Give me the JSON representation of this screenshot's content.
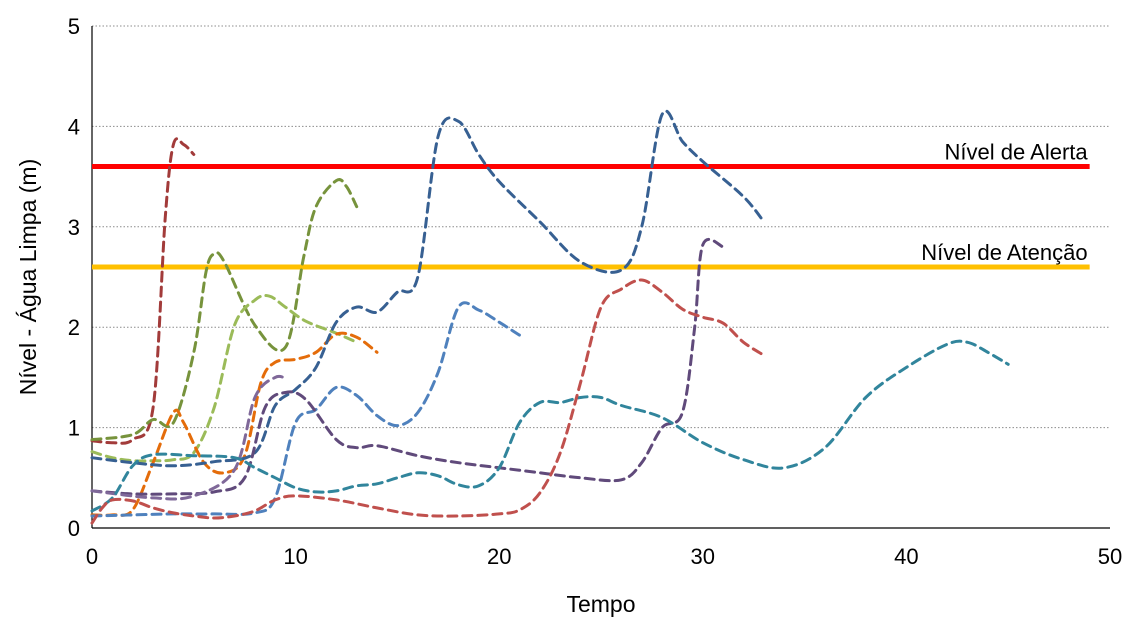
{
  "chart_data": {
    "type": "line",
    "title": "",
    "xlabel": "Tempo",
    "ylabel": "Nível - Água Limpa (m)",
    "xlim": [
      0,
      50
    ],
    "ylim": [
      0,
      5
    ],
    "x_ticks": [
      0,
      10,
      20,
      30,
      40,
      50
    ],
    "y_ticks": [
      0,
      1,
      2,
      3,
      4,
      5
    ],
    "grid": "horizontal dotted",
    "legend": "none",
    "reference_lines": [
      {
        "label": "Nível de Alerta",
        "value": 3.6,
        "color": "#ff0000"
      },
      {
        "label": "Nível de Atenção",
        "value": 2.6,
        "color": "#ffc000"
      }
    ],
    "series": [
      {
        "color": "#a23b3a",
        "points": [
          [
            0,
            0.87
          ],
          [
            1,
            0.85
          ],
          [
            2,
            0.88
          ],
          [
            3,
            1.2
          ],
          [
            3.6,
            3.1
          ],
          [
            4,
            3.82
          ],
          [
            4.5,
            3.82
          ],
          [
            5,
            3.72
          ]
        ]
      },
      {
        "color": "#77933c",
        "points": [
          [
            0,
            0.88
          ],
          [
            2,
            0.93
          ],
          [
            3,
            1.08
          ],
          [
            4,
            1.05
          ],
          [
            5,
            1.75
          ],
          [
            5.6,
            2.55
          ],
          [
            6,
            2.73
          ],
          [
            6.5,
            2.65
          ],
          [
            8,
            2.02
          ],
          [
            9.5,
            1.8
          ],
          [
            10.4,
            2.7
          ],
          [
            11,
            3.2
          ],
          [
            12,
            3.46
          ],
          [
            12.5,
            3.4
          ],
          [
            13,
            3.2
          ]
        ]
      },
      {
        "color": "#9bbb59",
        "points": [
          [
            0,
            0.76
          ],
          [
            1,
            0.7
          ],
          [
            2,
            0.67
          ],
          [
            3,
            0.67
          ],
          [
            4,
            0.68
          ],
          [
            5,
            0.75
          ],
          [
            6,
            1.2
          ],
          [
            7,
            2.02
          ],
          [
            8,
            2.27
          ],
          [
            8.7,
            2.31
          ],
          [
            9.5,
            2.2
          ],
          [
            10.5,
            2.06
          ],
          [
            12,
            1.94
          ],
          [
            13,
            1.85
          ]
        ]
      },
      {
        "color": "#e46c0a",
        "points": [
          [
            0,
            0.13
          ],
          [
            1,
            0.13
          ],
          [
            2,
            0.18
          ],
          [
            3,
            0.65
          ],
          [
            4,
            1.15
          ],
          [
            4.5,
            1.05
          ],
          [
            5.5,
            0.65
          ],
          [
            6.5,
            0.55
          ],
          [
            7.5,
            0.72
          ],
          [
            8.3,
            1.45
          ],
          [
            9,
            1.65
          ],
          [
            10,
            1.68
          ],
          [
            11,
            1.75
          ],
          [
            12,
            1.93
          ],
          [
            13,
            1.9
          ],
          [
            14,
            1.75
          ]
        ]
      },
      {
        "color": "#376092",
        "points": [
          [
            0,
            0.7
          ],
          [
            2,
            0.65
          ],
          [
            4,
            0.62
          ],
          [
            6,
            0.66
          ],
          [
            8,
            0.75
          ],
          [
            9,
            1.22
          ],
          [
            10,
            1.38
          ],
          [
            11,
            1.6
          ],
          [
            12,
            2.05
          ],
          [
            13,
            2.2
          ],
          [
            14,
            2.15
          ],
          [
            15,
            2.35
          ],
          [
            16,
            2.5
          ],
          [
            17,
            3.9
          ],
          [
            18,
            4.05
          ],
          [
            19,
            3.72
          ],
          [
            20,
            3.45
          ],
          [
            22,
            3.05
          ],
          [
            24,
            2.65
          ],
          [
            26,
            2.57
          ],
          [
            27,
            3.0
          ],
          [
            28,
            4.12
          ],
          [
            29,
            3.85
          ],
          [
            30,
            3.65
          ],
          [
            32,
            3.3
          ],
          [
            33,
            3.05
          ]
        ]
      },
      {
        "color": "#4f81bd",
        "points": [
          [
            0,
            0.12
          ],
          [
            2,
            0.13
          ],
          [
            4,
            0.14
          ],
          [
            6,
            0.14
          ],
          [
            8,
            0.15
          ],
          [
            9,
            0.3
          ],
          [
            10,
            1.05
          ],
          [
            11,
            1.18
          ],
          [
            12,
            1.4
          ],
          [
            13,
            1.32
          ],
          [
            14,
            1.12
          ],
          [
            15,
            1.02
          ],
          [
            16,
            1.15
          ],
          [
            17,
            1.55
          ],
          [
            18,
            2.2
          ],
          [
            19,
            2.17
          ],
          [
            20,
            2.05
          ],
          [
            21,
            1.92
          ]
        ]
      },
      {
        "color": "#604a7b",
        "points": [
          [
            0,
            0.37
          ],
          [
            2,
            0.34
          ],
          [
            4,
            0.34
          ],
          [
            6,
            0.36
          ],
          [
            7.5,
            0.5
          ],
          [
            8.5,
            1.2
          ],
          [
            9.5,
            1.35
          ],
          [
            10.5,
            1.28
          ],
          [
            12,
            0.88
          ],
          [
            13,
            0.8
          ],
          [
            14,
            0.82
          ],
          [
            16,
            0.72
          ],
          [
            18,
            0.65
          ],
          [
            20,
            0.6
          ],
          [
            22,
            0.55
          ],
          [
            24,
            0.5
          ],
          [
            26,
            0.48
          ],
          [
            27,
            0.65
          ],
          [
            28,
            1.0
          ],
          [
            29,
            1.15
          ],
          [
            29.6,
            2.0
          ],
          [
            30,
            2.82
          ],
          [
            31,
            2.8
          ]
        ]
      },
      {
        "color": "#7f6899",
        "points": [
          [
            0,
            0.37
          ],
          [
            3,
            0.3
          ],
          [
            5,
            0.32
          ],
          [
            7,
            0.58
          ],
          [
            8,
            1.3
          ],
          [
            9,
            1.5
          ],
          [
            9.6,
            1.48
          ]
        ]
      },
      {
        "color": "#31859c",
        "points": [
          [
            0,
            0.17
          ],
          [
            1,
            0.3
          ],
          [
            2,
            0.62
          ],
          [
            3,
            0.73
          ],
          [
            5,
            0.72
          ],
          [
            7,
            0.7
          ],
          [
            8,
            0.6
          ],
          [
            9,
            0.5
          ],
          [
            10,
            0.4
          ],
          [
            11,
            0.36
          ],
          [
            12,
            0.37
          ],
          [
            13,
            0.42
          ],
          [
            14,
            0.44
          ],
          [
            15,
            0.5
          ],
          [
            16,
            0.55
          ],
          [
            17,
            0.52
          ],
          [
            18,
            0.43
          ],
          [
            19,
            0.42
          ],
          [
            20,
            0.6
          ],
          [
            21,
            1.05
          ],
          [
            22,
            1.25
          ],
          [
            23,
            1.25
          ],
          [
            24,
            1.3
          ],
          [
            25,
            1.3
          ],
          [
            26,
            1.22
          ],
          [
            28,
            1.1
          ],
          [
            30,
            0.85
          ],
          [
            32,
            0.68
          ],
          [
            34,
            0.6
          ],
          [
            36,
            0.8
          ],
          [
            38,
            1.3
          ],
          [
            40,
            1.6
          ],
          [
            42,
            1.83
          ],
          [
            43,
            1.85
          ],
          [
            44,
            1.75
          ],
          [
            45,
            1.63
          ]
        ]
      },
      {
        "color": "#c0504d",
        "points": [
          [
            0,
            0.05
          ],
          [
            0.5,
            0.2
          ],
          [
            1,
            0.28
          ],
          [
            2,
            0.27
          ],
          [
            3,
            0.2
          ],
          [
            4,
            0.15
          ],
          [
            5,
            0.12
          ],
          [
            6,
            0.1
          ],
          [
            7,
            0.12
          ],
          [
            8,
            0.17
          ],
          [
            9,
            0.28
          ],
          [
            10,
            0.32
          ],
          [
            12,
            0.28
          ],
          [
            14,
            0.2
          ],
          [
            16,
            0.13
          ],
          [
            18,
            0.12
          ],
          [
            20,
            0.14
          ],
          [
            21,
            0.18
          ],
          [
            22,
            0.35
          ],
          [
            23,
            0.75
          ],
          [
            24,
            1.45
          ],
          [
            25,
            2.2
          ],
          [
            26,
            2.38
          ],
          [
            27,
            2.47
          ],
          [
            28,
            2.35
          ],
          [
            29,
            2.18
          ],
          [
            30,
            2.1
          ],
          [
            31,
            2.04
          ],
          [
            32,
            1.85
          ],
          [
            33,
            1.72
          ]
        ]
      }
    ]
  }
}
